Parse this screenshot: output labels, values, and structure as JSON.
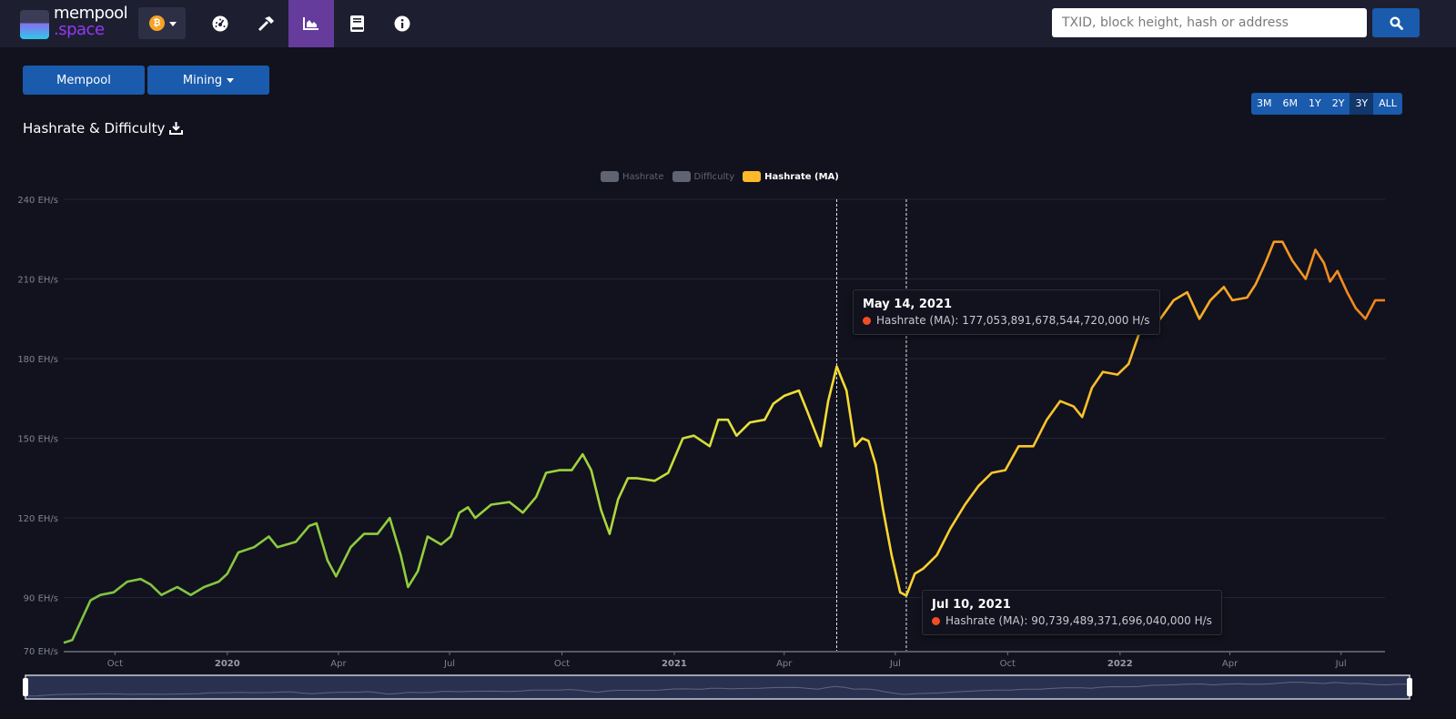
{
  "nav": {
    "logo_top": "mempool",
    "logo_bottom": ".space",
    "network_icon": "bitcoin-icon",
    "items": [
      {
        "name": "dashboard",
        "icon": "gauge-icon"
      },
      {
        "name": "mining",
        "icon": "hammer-icon"
      },
      {
        "name": "graphs",
        "icon": "chart-area-icon",
        "active": true
      },
      {
        "name": "docs",
        "icon": "book-icon"
      },
      {
        "name": "about",
        "icon": "info-icon"
      }
    ],
    "search_placeholder": "TXID, block height, hash or address",
    "search_icon": "search-icon"
  },
  "tabs": {
    "mempool": "Mempool",
    "mining": "Mining"
  },
  "page_title": "Hashrate & Difficulty",
  "ranges": {
    "items": [
      "3M",
      "6M",
      "1Y",
      "2Y",
      "3Y",
      "ALL"
    ],
    "selected": "3Y"
  },
  "colors": {
    "accent": "#1a5bad",
    "active_nav": "#653b9c",
    "ma_legend": "#ffb82a",
    "tooltip_dot": "#f04e23"
  },
  "chart_data": {
    "type": "line",
    "legend": [
      {
        "name": "Hashrate",
        "enabled": false
      },
      {
        "name": "Difficulty",
        "enabled": false
      },
      {
        "name": "Hashrate (MA)",
        "enabled": true
      }
    ],
    "legend_position": "top-center",
    "ylim": [
      70,
      240
    ],
    "y_ticks": [
      "70 EH/s",
      "90 EH/s",
      "120 EH/s",
      "150 EH/s",
      "180 EH/s",
      "210 EH/s",
      "240 EH/s"
    ],
    "x_ticks": [
      {
        "label": "Oct",
        "date": "2019-10-01",
        "bold": false
      },
      {
        "label": "2020",
        "date": "2020-01-01",
        "bold": true
      },
      {
        "label": "Apr",
        "date": "2020-04-01",
        "bold": false
      },
      {
        "label": "Jul",
        "date": "2020-07-01",
        "bold": false
      },
      {
        "label": "Oct",
        "date": "2020-10-01",
        "bold": false
      },
      {
        "label": "2021",
        "date": "2021-01-01",
        "bold": true
      },
      {
        "label": "Apr",
        "date": "2021-04-01",
        "bold": false
      },
      {
        "label": "Jul",
        "date": "2021-07-01",
        "bold": false
      },
      {
        "label": "Oct",
        "date": "2021-10-01",
        "bold": false
      },
      {
        "label": "2022",
        "date": "2022-01-01",
        "bold": true
      },
      {
        "label": "Apr",
        "date": "2022-04-01",
        "bold": false
      },
      {
        "label": "Jul",
        "date": "2022-07-01",
        "bold": false
      }
    ],
    "xlim": [
      "2019-08-20",
      "2022-08-06"
    ],
    "grid": true,
    "series": [
      {
        "name": "Hashrate (MA)",
        "unit": "EH/s",
        "x": [
          "2019-08-20",
          "2019-08-27",
          "2019-09-04",
          "2019-09-11",
          "2019-09-19",
          "2019-09-30",
          "2019-10-11",
          "2019-10-22",
          "2019-10-30",
          "2019-11-08",
          "2019-11-21",
          "2019-12-02",
          "2019-12-13",
          "2019-12-25",
          "2020-01-01",
          "2020-01-10",
          "2020-01-23",
          "2020-02-04",
          "2020-02-11",
          "2020-02-26",
          "2020-03-08",
          "2020-03-14",
          "2020-03-23",
          "2020-03-30",
          "2020-04-11",
          "2020-04-22",
          "2020-05-03",
          "2020-05-13",
          "2020-05-22",
          "2020-05-28",
          "2020-06-05",
          "2020-06-13",
          "2020-06-24",
          "2020-07-02",
          "2020-07-09",
          "2020-07-16",
          "2020-07-22",
          "2020-08-04",
          "2020-08-19",
          "2020-08-30",
          "2020-09-10",
          "2020-09-18",
          "2020-09-29",
          "2020-10-09",
          "2020-10-18",
          "2020-10-25",
          "2020-11-02",
          "2020-11-09",
          "2020-11-16",
          "2020-11-24",
          "2020-12-01",
          "2020-12-16",
          "2020-12-27",
          "2021-01-08",
          "2021-01-17",
          "2021-01-30",
          "2021-02-06",
          "2021-02-14",
          "2021-02-21",
          "2021-03-04",
          "2021-03-16",
          "2021-03-23",
          "2021-04-01",
          "2021-04-13",
          "2021-04-20",
          "2021-05-01",
          "2021-05-07",
          "2021-05-14",
          "2021-05-22",
          "2021-05-29",
          "2021-06-04",
          "2021-06-09",
          "2021-06-15",
          "2021-06-21",
          "2021-06-28",
          "2021-07-05",
          "2021-07-10",
          "2021-07-17",
          "2021-07-24",
          "2021-08-04",
          "2021-08-15",
          "2021-08-27",
          "2021-09-07",
          "2021-09-18",
          "2021-09-29",
          "2021-10-10",
          "2021-10-22",
          "2021-11-02",
          "2021-11-13",
          "2021-11-24",
          "2021-12-01",
          "2021-12-09",
          "2021-12-18",
          "2021-12-30",
          "2022-01-08",
          "2022-01-17",
          "2022-01-26",
          "2022-02-03",
          "2022-02-14",
          "2022-02-25",
          "2022-03-07",
          "2022-03-16",
          "2022-03-27",
          "2022-04-03",
          "2022-04-15",
          "2022-04-22",
          "2022-04-30",
          "2022-05-07",
          "2022-05-14",
          "2022-05-22",
          "2022-06-02",
          "2022-06-10",
          "2022-06-17",
          "2022-06-22",
          "2022-06-28",
          "2022-07-06",
          "2022-07-13",
          "2022-07-21",
          "2022-07-29",
          "2022-08-06"
        ],
        "values": [
          73,
          74,
          82,
          89,
          91,
          92,
          96,
          97,
          95,
          91,
          94,
          91,
          94,
          96,
          99,
          107,
          109,
          113,
          109,
          111,
          117,
          118,
          104,
          98,
          109,
          114,
          114,
          120,
          106,
          94,
          100,
          113,
          110,
          113,
          122,
          124,
          120,
          125,
          126,
          122,
          128,
          137,
          138,
          138,
          144,
          138,
          123,
          114,
          127,
          135,
          135,
          134,
          137,
          150,
          151,
          147,
          157,
          157,
          151,
          156,
          157,
          163,
          166,
          168,
          160,
          147,
          164,
          177.05,
          168,
          147,
          150,
          149,
          140,
          123,
          106,
          92,
          90.74,
          99,
          101,
          106,
          116,
          125,
          132,
          137,
          138,
          147,
          147,
          157,
          164,
          162,
          158,
          169,
          175,
          174,
          178,
          190,
          192,
          195,
          202,
          205,
          195,
          202,
          207,
          202,
          203,
          208,
          216,
          224,
          224,
          217,
          210,
          221,
          216,
          209,
          213,
          205,
          199,
          195,
          202,
          202
        ]
      }
    ],
    "tooltips": [
      {
        "date": "May 14, 2021",
        "label": "Hashrate (MA): 177,053,891,678,544,720,000 H/s"
      },
      {
        "date": "Jul 10, 2021",
        "label": "Hashrate (MA): 90,739,489,371,696,040,000 H/s"
      }
    ]
  }
}
